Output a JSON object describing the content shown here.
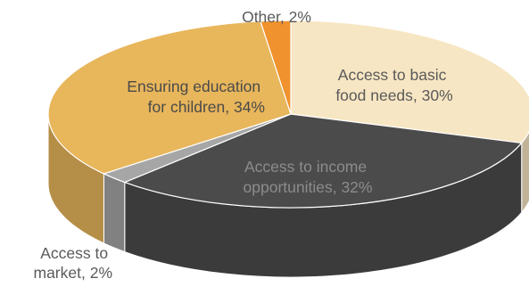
{
  "chart_data": {
    "type": "pie",
    "three_d": true,
    "title": "",
    "slices": [
      {
        "key": "food",
        "label_lines": [
          "Access to basic",
          "food needs, 30%"
        ],
        "value": 30,
        "color": "#f7e6c3"
      },
      {
        "key": "income",
        "label_lines": [
          "Access to income",
          "opportunities, 32%"
        ],
        "value": 32,
        "color": "#4b4b4b"
      },
      {
        "key": "market",
        "label_lines": [
          "Access to",
          "market, 2%"
        ],
        "value": 2,
        "color": "#a6a6a6"
      },
      {
        "key": "edu",
        "label_lines": [
          "Ensuring education",
          "for children, 34%"
        ],
        "value": 34,
        "color": "#e8b65b"
      },
      {
        "key": "other",
        "label_lines": [
          "Other, 2%"
        ],
        "value": 2,
        "color": "#f0922e"
      }
    ],
    "legend": "none"
  }
}
